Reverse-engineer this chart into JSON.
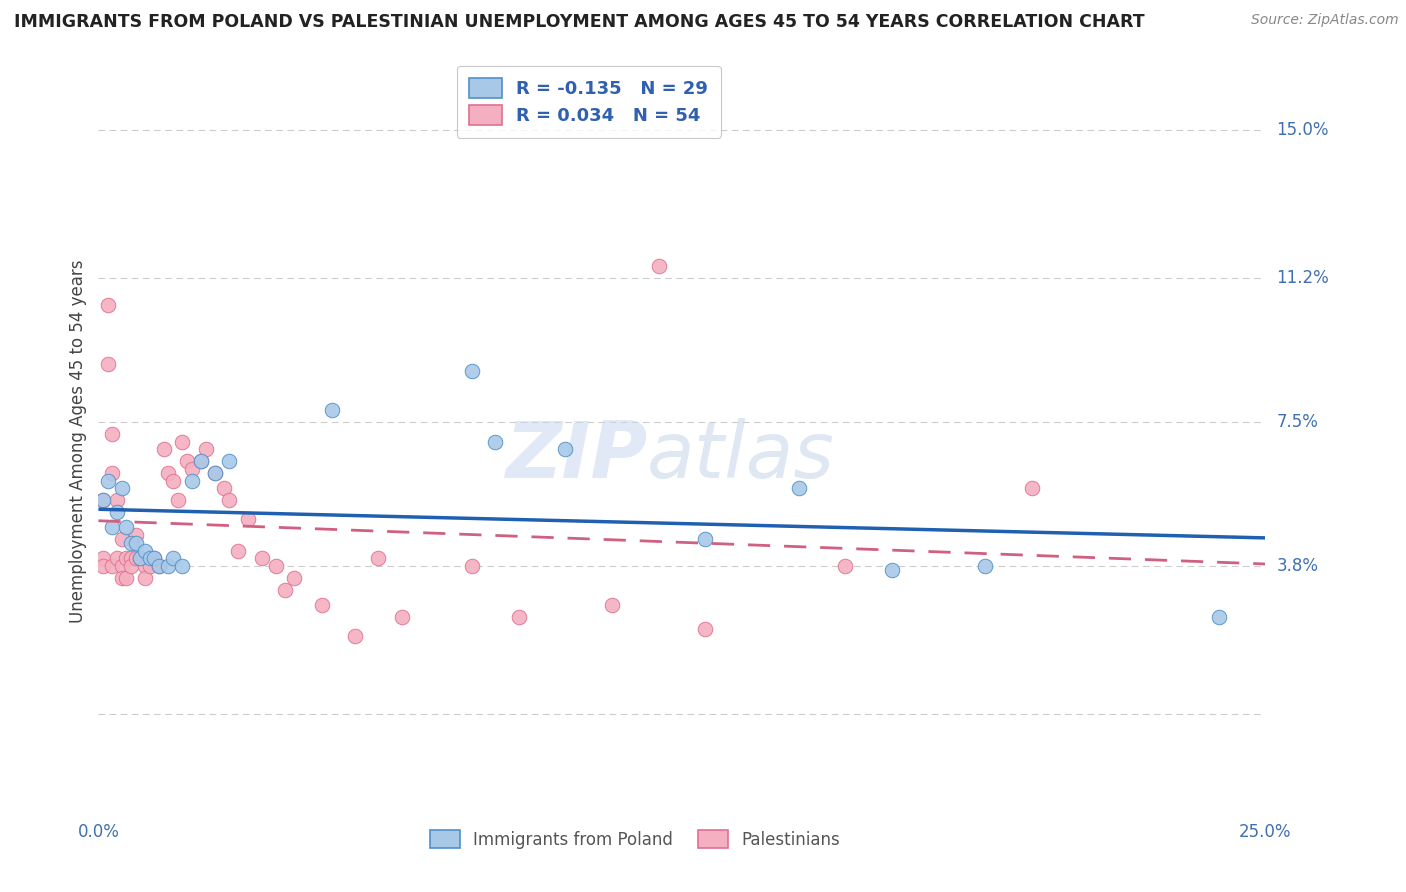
{
  "title": "IMMIGRANTS FROM POLAND VS PALESTINIAN UNEMPLOYMENT AMONG AGES 45 TO 54 YEARS CORRELATION CHART",
  "source": "Source: ZipAtlas.com",
  "ylabel": "Unemployment Among Ages 45 to 54 years",
  "xlim": [
    0.0,
    0.25
  ],
  "ylim": [
    -0.025,
    0.165
  ],
  "ytick_positions": [
    0.0,
    0.038,
    0.075,
    0.112,
    0.15
  ],
  "ytick_labels": [
    "",
    "3.8%",
    "7.5%",
    "11.2%",
    "15.0%"
  ],
  "poland_R": -0.135,
  "poland_N": 29,
  "palestinian_R": 0.034,
  "palestinian_N": 54,
  "poland_color": "#A8C8E8",
  "poland_edge_color": "#5090C8",
  "poland_line_color": "#2060B0",
  "palestinian_color": "#F4B0C0",
  "palestinian_edge_color": "#E07090",
  "palestinian_line_color": "#D06080",
  "poland_x": [
    0.001,
    0.002,
    0.003,
    0.004,
    0.005,
    0.006,
    0.007,
    0.008,
    0.009,
    0.01,
    0.011,
    0.012,
    0.013,
    0.015,
    0.016,
    0.018,
    0.02,
    0.022,
    0.025,
    0.028,
    0.05,
    0.08,
    0.085,
    0.1,
    0.13,
    0.15,
    0.17,
    0.19,
    0.24
  ],
  "poland_y": [
    0.055,
    0.06,
    0.048,
    0.052,
    0.058,
    0.048,
    0.044,
    0.044,
    0.04,
    0.042,
    0.04,
    0.04,
    0.038,
    0.038,
    0.04,
    0.038,
    0.06,
    0.065,
    0.062,
    0.065,
    0.078,
    0.088,
    0.07,
    0.068,
    0.045,
    0.058,
    0.037,
    0.038,
    0.025
  ],
  "palestinian_x": [
    0.001,
    0.001,
    0.001,
    0.002,
    0.002,
    0.003,
    0.003,
    0.003,
    0.004,
    0.004,
    0.005,
    0.005,
    0.005,
    0.006,
    0.006,
    0.007,
    0.007,
    0.008,
    0.008,
    0.009,
    0.01,
    0.01,
    0.011,
    0.012,
    0.013,
    0.014,
    0.015,
    0.016,
    0.017,
    0.018,
    0.019,
    0.02,
    0.022,
    0.023,
    0.025,
    0.027,
    0.028,
    0.03,
    0.032,
    0.035,
    0.038,
    0.04,
    0.042,
    0.048,
    0.055,
    0.06,
    0.065,
    0.08,
    0.09,
    0.11,
    0.12,
    0.13,
    0.16,
    0.2
  ],
  "palestinian_y": [
    0.055,
    0.04,
    0.038,
    0.105,
    0.09,
    0.072,
    0.062,
    0.038,
    0.055,
    0.04,
    0.045,
    0.038,
    0.035,
    0.04,
    0.035,
    0.04,
    0.038,
    0.046,
    0.04,
    0.04,
    0.038,
    0.035,
    0.038,
    0.04,
    0.038,
    0.068,
    0.062,
    0.06,
    0.055,
    0.07,
    0.065,
    0.063,
    0.065,
    0.068,
    0.062,
    0.058,
    0.055,
    0.042,
    0.05,
    0.04,
    0.038,
    0.032,
    0.035,
    0.028,
    0.02,
    0.04,
    0.025,
    0.038,
    0.025,
    0.028,
    0.115,
    0.022,
    0.038,
    0.058
  ],
  "watermark_zip": "ZIP",
  "watermark_atlas": "atlas",
  "background_color": "#FFFFFF",
  "grid_color": "#CCCCCC"
}
